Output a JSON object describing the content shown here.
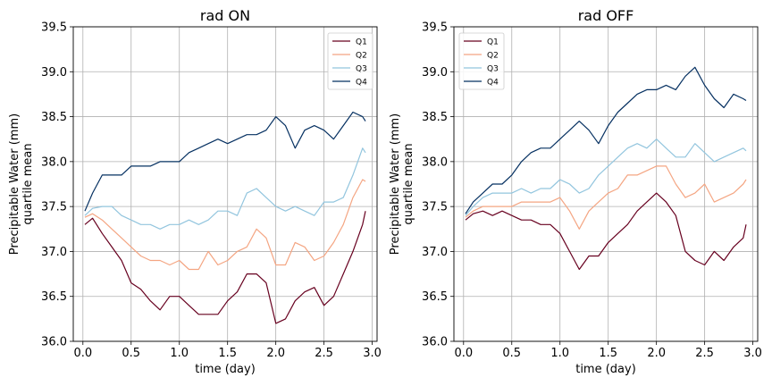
{
  "chart_data": [
    {
      "type": "line",
      "title": "rad ON",
      "xlabel": "time (day)",
      "ylabel": "Precipitable Water (mm)",
      "ylabel2": "quartile mean",
      "xlim": [
        -0.1,
        3.05
      ],
      "ylim": [
        36.0,
        39.5
      ],
      "xticks": [
        "0.0",
        "0.5",
        "1.0",
        "1.5",
        "2.0",
        "2.5",
        "3.0"
      ],
      "yticks": [
        "36.0",
        "36.5",
        "37.0",
        "37.5",
        "38.0",
        "38.5",
        "39.0",
        "39.5"
      ],
      "grid": true,
      "legend_position": "top-right",
      "x": [
        0.02,
        0.1,
        0.2,
        0.3,
        0.4,
        0.5,
        0.6,
        0.7,
        0.8,
        0.9,
        1.0,
        1.1,
        1.2,
        1.3,
        1.4,
        1.5,
        1.6,
        1.7,
        1.8,
        1.9,
        2.0,
        2.1,
        2.2,
        2.3,
        2.4,
        2.5,
        2.6,
        2.7,
        2.8,
        2.9,
        2.93
      ],
      "series": [
        {
          "name": "Q1",
          "color": "#67001f",
          "values": [
            37.3,
            37.37,
            37.2,
            37.05,
            36.9,
            36.65,
            36.58,
            36.45,
            36.35,
            36.5,
            36.5,
            36.4,
            36.3,
            36.3,
            36.3,
            36.45,
            36.55,
            36.75,
            36.75,
            36.65,
            36.2,
            36.25,
            36.45,
            36.55,
            36.6,
            36.4,
            36.5,
            36.75,
            37.0,
            37.3,
            37.45
          ]
        },
        {
          "name": "Q2",
          "color": "#f4a582",
          "values": [
            37.38,
            37.42,
            37.35,
            37.25,
            37.15,
            37.05,
            36.95,
            36.9,
            36.9,
            36.85,
            36.9,
            36.8,
            36.8,
            37.0,
            36.85,
            36.9,
            37.0,
            37.05,
            37.25,
            37.15,
            36.85,
            36.85,
            37.1,
            37.05,
            36.9,
            36.95,
            37.1,
            37.3,
            37.6,
            37.8,
            37.78
          ]
        },
        {
          "name": "Q3",
          "color": "#92c5de",
          "values": [
            37.4,
            37.48,
            37.5,
            37.5,
            37.4,
            37.35,
            37.3,
            37.3,
            37.25,
            37.3,
            37.3,
            37.35,
            37.3,
            37.35,
            37.45,
            37.45,
            37.4,
            37.65,
            37.7,
            37.6,
            37.5,
            37.45,
            37.5,
            37.45,
            37.4,
            37.55,
            37.55,
            37.6,
            37.85,
            38.15,
            38.1
          ]
        },
        {
          "name": "Q4",
          "color": "#053061",
          "values": [
            37.45,
            37.65,
            37.85,
            37.85,
            37.85,
            37.95,
            37.95,
            37.95,
            38.0,
            38.0,
            38.0,
            38.1,
            38.15,
            38.2,
            38.25,
            38.2,
            38.25,
            38.3,
            38.3,
            38.35,
            38.5,
            38.4,
            38.15,
            38.35,
            38.4,
            38.35,
            38.25,
            38.4,
            38.55,
            38.5,
            38.45
          ]
        }
      ]
    },
    {
      "type": "line",
      "title": "rad OFF",
      "xlabel": "time (day)",
      "ylabel": "Precipitable Water (mm)",
      "ylabel2": "quartile mean",
      "xlim": [
        -0.1,
        3.05
      ],
      "ylim": [
        36.0,
        39.5
      ],
      "xticks": [
        "0.0",
        "0.5",
        "1.0",
        "1.5",
        "2.0",
        "2.5",
        "3.0"
      ],
      "yticks": [
        "36.0",
        "36.5",
        "37.0",
        "37.5",
        "38.0",
        "38.5",
        "39.0",
        "39.5"
      ],
      "grid": true,
      "legend_position": "top-left",
      "x": [
        0.02,
        0.1,
        0.2,
        0.3,
        0.4,
        0.5,
        0.6,
        0.7,
        0.8,
        0.9,
        1.0,
        1.1,
        1.2,
        1.3,
        1.4,
        1.5,
        1.6,
        1.7,
        1.8,
        1.9,
        2.0,
        2.1,
        2.2,
        2.3,
        2.4,
        2.5,
        2.6,
        2.7,
        2.8,
        2.9,
        2.93
      ],
      "series": [
        {
          "name": "Q1",
          "color": "#67001f",
          "values": [
            37.35,
            37.42,
            37.45,
            37.4,
            37.45,
            37.4,
            37.35,
            37.35,
            37.3,
            37.3,
            37.2,
            37.0,
            36.8,
            36.95,
            36.95,
            37.1,
            37.2,
            37.3,
            37.45,
            37.55,
            37.65,
            37.55,
            37.4,
            37.0,
            36.9,
            36.85,
            37.0,
            36.9,
            37.05,
            37.15,
            37.3
          ]
        },
        {
          "name": "Q2",
          "color": "#f4a582",
          "values": [
            37.38,
            37.45,
            37.5,
            37.5,
            37.5,
            37.5,
            37.55,
            37.55,
            37.55,
            37.55,
            37.6,
            37.45,
            37.25,
            37.45,
            37.55,
            37.65,
            37.7,
            37.85,
            37.85,
            37.9,
            37.95,
            37.95,
            37.75,
            37.6,
            37.65,
            37.75,
            37.55,
            37.6,
            37.65,
            37.75,
            37.8
          ]
        },
        {
          "name": "Q3",
          "color": "#92c5de",
          "values": [
            37.4,
            37.5,
            37.6,
            37.65,
            37.65,
            37.65,
            37.7,
            37.65,
            37.7,
            37.7,
            37.8,
            37.75,
            37.65,
            37.7,
            37.85,
            37.95,
            38.05,
            38.15,
            38.2,
            38.15,
            38.25,
            38.15,
            38.05,
            38.05,
            38.2,
            38.1,
            38.0,
            38.05,
            38.1,
            38.15,
            38.12
          ]
        },
        {
          "name": "Q4",
          "color": "#053061",
          "values": [
            37.42,
            37.55,
            37.65,
            37.75,
            37.75,
            37.85,
            38.0,
            38.1,
            38.15,
            38.15,
            38.25,
            38.35,
            38.45,
            38.35,
            38.2,
            38.4,
            38.55,
            38.65,
            38.75,
            38.8,
            38.8,
            38.85,
            38.8,
            38.95,
            39.05,
            38.85,
            38.7,
            38.6,
            38.75,
            38.7,
            38.68
          ]
        }
      ]
    }
  ]
}
